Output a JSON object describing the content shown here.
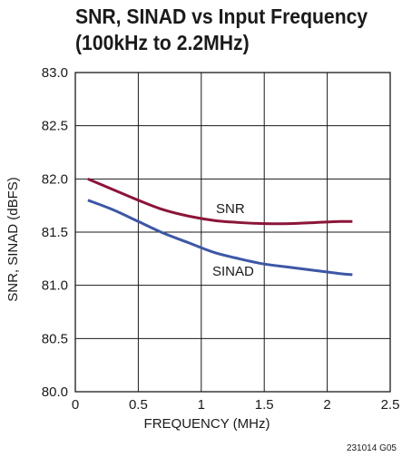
{
  "chart_data": {
    "type": "line",
    "title_lines": [
      "SNR, SINAD vs Input Frequency",
      "(100kHz to 2.2MHz)"
    ],
    "xlabel": "FREQUENCY (MHz)",
    "ylabel": "SNR, SINAD (dBFS)",
    "xlim": [
      0,
      2.5
    ],
    "ylim": [
      80.0,
      83.0
    ],
    "x_ticks": [
      0,
      0.5,
      1,
      1.5,
      2,
      2.5
    ],
    "x_tick_labels": [
      "0",
      "0.5",
      "1",
      "1.5",
      "2",
      "2.5"
    ],
    "y_ticks": [
      80.0,
      80.5,
      81.0,
      81.5,
      82.0,
      82.5,
      83.0
    ],
    "y_tick_labels": [
      "80.0",
      "80.5",
      "81.0",
      "81.5",
      "82.0",
      "82.5",
      "83.0"
    ],
    "grid": true,
    "series": [
      {
        "name": "SNR",
        "color": "#8b1538",
        "x": [
          0.1,
          0.3,
          0.5,
          0.7,
          0.9,
          1.1,
          1.3,
          1.5,
          1.7,
          1.9,
          2.1,
          2.2
        ],
        "y": [
          82.0,
          81.9,
          81.8,
          81.71,
          81.65,
          81.61,
          81.59,
          81.58,
          81.58,
          81.59,
          81.6,
          81.6
        ]
      },
      {
        "name": "SINAD",
        "color": "#3d57a6",
        "x": [
          0.1,
          0.3,
          0.5,
          0.7,
          0.9,
          1.1,
          1.3,
          1.5,
          1.7,
          1.9,
          2.1,
          2.2
        ],
        "y": [
          81.8,
          81.71,
          81.6,
          81.49,
          81.4,
          81.31,
          81.25,
          81.2,
          81.17,
          81.14,
          81.11,
          81.1
        ]
      }
    ],
    "footnote": "231014 G05"
  }
}
